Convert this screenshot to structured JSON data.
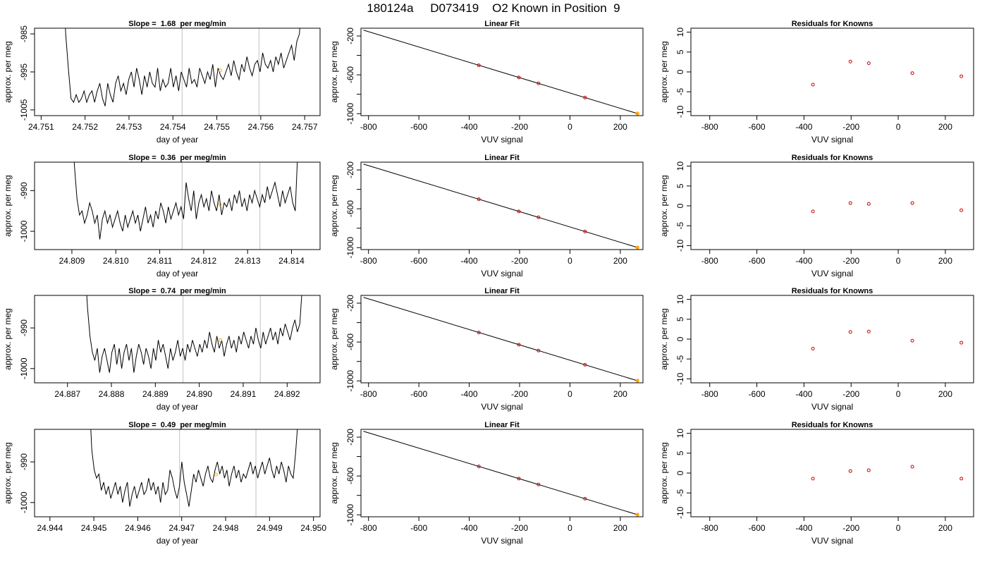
{
  "figure_title": "180124a     D073419    O2 Known in Position  9",
  "colors": {
    "trace": "#000000",
    "vline": "#cccccc",
    "point_red": "#cc0000",
    "point_orange": "#ffa500"
  },
  "chart_data": [
    {
      "type": "line",
      "title": "Slope =  1.68  per meg/min",
      "xlabel": "day of year",
      "ylabel": "approx. per meg",
      "xlim": [
        24.75085,
        24.75735
      ],
      "ylim": [
        -1006.5,
        -983.5
      ],
      "xticks": [
        24.751,
        24.752,
        24.753,
        24.754,
        24.755,
        24.756,
        24.757
      ],
      "xtick_labels": [
        "24.751",
        "24.752",
        "24.753",
        "24.754",
        "24.755",
        "24.756",
        "24.757"
      ],
      "yticks": [
        -1005,
        -995,
        -985
      ],
      "ytick_labels": [
        "-1005",
        "-995",
        "-985"
      ],
      "vlines": [
        24.75421,
        24.75596
      ],
      "trace_x_start": 24.7515,
      "trace_x_end": 24.757,
      "trace": [
        -970,
        -985,
        -994,
        -1002,
        -1003,
        -1001,
        -1003,
        -1002,
        -1000,
        -1003,
        -1001,
        -1000,
        -1003,
        -1000,
        -998,
        -1002,
        -1004,
        -998,
        -1001,
        -1003,
        -998,
        -996,
        -1000,
        -998,
        -1001,
        -997,
        -995,
        -999,
        -994,
        -997,
        -1001,
        -996,
        -999,
        -995,
        -998,
        -999,
        -994,
        -1000,
        -997,
        -999,
        -998,
        -994,
        -999,
        -996,
        -1000,
        -995,
        -997,
        -999,
        -994,
        -998,
        -997,
        -999,
        -994,
        -996,
        -998,
        -995,
        -997,
        -993,
        -999,
        -994,
        -996,
        -997,
        -995,
        -993,
        -996,
        -992,
        -995,
        -997,
        -993,
        -995,
        -991,
        -994,
        -996,
        -993,
        -992,
        -995,
        -990,
        -993,
        -994,
        -992,
        -995,
        -991,
        -993,
        -990,
        -994,
        -992,
        -990,
        -988,
        -992,
        -987,
        -985,
        -975,
        -970
      ],
      "trace_y_min": -1006.5,
      "marker": {
        "x": 24.75508,
        "y": -994.6
      }
    },
    {
      "type": "scatter",
      "title": "Linear Fit",
      "xlabel": "VUV signal",
      "ylabel": "approx. per meg",
      "xlim": [
        -830,
        290
      ],
      "ylim": [
        -1020,
        -120
      ],
      "xticks": [
        -800,
        -600,
        -400,
        -200,
        0,
        200
      ],
      "xtick_labels": [
        "-800",
        "-600",
        "-400",
        "-200",
        "0",
        "200"
      ],
      "yticks": [
        -1000,
        -800,
        -600,
        -400,
        -200
      ],
      "ytick_labels": [
        "-1000",
        "",
        "-600",
        "",
        "-200"
      ],
      "line": [
        [
          -820,
          -140
        ],
        [
          270,
          -1000
        ]
      ],
      "points": [
        [
          -362,
          -502
        ],
        [
          -203,
          -627
        ],
        [
          -125,
          -688
        ],
        [
          60,
          -834
        ],
        [
          268,
          -998
        ]
      ],
      "highlight": [
        268,
        -998
      ]
    },
    {
      "type": "scatter",
      "title": "Residuals for Knowns",
      "xlabel": "VUV signal",
      "ylabel": "approx. per meg",
      "xlim": [
        -880,
        320
      ],
      "ylim": [
        -11,
        11
      ],
      "xticks": [
        -800,
        -600,
        -400,
        -200,
        0,
        200
      ],
      "xtick_labels": [
        "-800",
        "-600",
        "-400",
        "-200",
        "0",
        "200"
      ],
      "yticks": [
        -10,
        -5,
        0,
        5,
        10
      ],
      "ytick_labels": [
        "-10",
        "-5",
        "0",
        "5",
        "10"
      ],
      "points": [
        [
          -362,
          -3.2
        ],
        [
          -203,
          2.6
        ],
        [
          -125,
          2.2
        ],
        [
          60,
          -0.3
        ],
        [
          268,
          -1.1
        ]
      ]
    },
    {
      "type": "line",
      "title": "Slope =  0.36  per meg/min",
      "xlabel": "day of year",
      "ylabel": "approx. per meg",
      "xlim": [
        24.80815,
        24.81465
      ],
      "ylim": [
        -1004.5,
        -983
      ],
      "xticks": [
        24.809,
        24.81,
        24.811,
        24.812,
        24.813,
        24.814
      ],
      "xtick_labels": [
        "24.809",
        "24.810",
        "24.811",
        "24.812",
        "24.813",
        "24.814"
      ],
      "yticks": [
        -1000,
        -990
      ],
      "ytick_labels": [
        "-1000",
        "-990"
      ],
      "vlines": [
        24.81151,
        24.81328
      ],
      "trace_x_start": 24.809,
      "trace_x_end": 24.8142,
      "trace": [
        -972,
        -984,
        -992,
        -996,
        -995,
        -998,
        -996,
        -993,
        -995,
        -998,
        -996,
        -1002,
        -997,
        -995,
        -998,
        -996,
        -999,
        -997,
        -995,
        -998,
        -1000,
        -996,
        -999,
        -997,
        -995,
        -998,
        -996,
        -1000,
        -997,
        -994,
        -998,
        -996,
        -999,
        -995,
        -997,
        -993,
        -995,
        -998,
        -994,
        -997,
        -995,
        -993,
        -996,
        -994,
        -997,
        -988,
        -992,
        -995,
        -990,
        -997,
        -993,
        -991,
        -994,
        -992,
        -995,
        -990,
        -993,
        -995,
        -991,
        -996,
        -993,
        -994,
        -992,
        -995,
        -991,
        -993,
        -990,
        -994,
        -992,
        -995,
        -991,
        -993,
        -990,
        -992,
        -994,
        -991,
        -993,
        -989,
        -992,
        -990,
        -988,
        -991,
        -994,
        -990,
        -993,
        -991,
        -989,
        -993,
        -995,
        -980,
        -972
      ],
      "trace_y_min": -1004.5,
      "marker": {
        "x": 24.81237,
        "y": -993.4
      }
    },
    {
      "type": "scatter",
      "title": "Linear Fit",
      "xlabel": "VUV signal",
      "ylabel": "approx. per meg",
      "xlim": [
        -830,
        290
      ],
      "ylim": [
        -1020,
        -120
      ],
      "xticks": [
        -800,
        -600,
        -400,
        -200,
        0,
        200
      ],
      "xtick_labels": [
        "-800",
        "-600",
        "-400",
        "-200",
        "0",
        "200"
      ],
      "yticks": [
        -1000,
        -800,
        -600,
        -400,
        -200
      ],
      "ytick_labels": [
        "-1000",
        "",
        "-600",
        "",
        "-200"
      ],
      "line": [
        [
          -820,
          -140
        ],
        [
          270,
          -1000
        ]
      ],
      "points": [
        [
          -362,
          -502
        ],
        [
          -203,
          -627
        ],
        [
          -125,
          -688
        ],
        [
          60,
          -834
        ],
        [
          268,
          -998
        ]
      ],
      "highlight": [
        268,
        -998
      ]
    },
    {
      "type": "scatter",
      "title": "Residuals for Knowns",
      "xlabel": "VUV signal",
      "ylabel": "approx. per meg",
      "xlim": [
        -880,
        320
      ],
      "ylim": [
        -11,
        11
      ],
      "xticks": [
        -800,
        -600,
        -400,
        -200,
        0,
        200
      ],
      "xtick_labels": [
        "-800",
        "-600",
        "-400",
        "-200",
        "0",
        "200"
      ],
      "yticks": [
        -10,
        -5,
        0,
        5,
        10
      ],
      "ytick_labels": [
        "-10",
        "-5",
        "0",
        "5",
        "10"
      ],
      "points": [
        [
          -362,
          -1.4
        ],
        [
          -203,
          0.7
        ],
        [
          -125,
          0.5
        ],
        [
          60,
          0.7
        ],
        [
          268,
          -1.1
        ]
      ]
    },
    {
      "type": "line",
      "title": "Slope =  0.74  per meg/min",
      "xlabel": "day of year",
      "ylabel": "approx. per meg",
      "xlim": [
        24.88625,
        24.89275
      ],
      "ylim": [
        -1003.5,
        -982
      ],
      "xticks": [
        24.887,
        24.888,
        24.889,
        24.89,
        24.891,
        24.892
      ],
      "xtick_labels": [
        "24.887",
        "24.888",
        "24.889",
        "24.890",
        "24.891",
        "24.892"
      ],
      "yticks": [
        -1000,
        -990
      ],
      "ytick_labels": [
        "-1000",
        "-990"
      ],
      "vlines": [
        24.88963,
        24.89139
      ],
      "trace_x_start": 24.8874,
      "trace_x_end": 24.8924,
      "trace": [
        -975,
        -985,
        -992,
        -996,
        -998,
        -995,
        -1001,
        -997,
        -995,
        -998,
        -1001,
        -996,
        -994,
        -999,
        -995,
        -1000,
        -996,
        -994,
        -998,
        -995,
        -1001,
        -997,
        -994,
        -996,
        -999,
        -995,
        -997,
        -1000,
        -995,
        -998,
        -993,
        -996,
        -994,
        -997,
        -1000,
        -995,
        -998,
        -996,
        -993,
        -997,
        -995,
        -998,
        -994,
        -996,
        -993,
        -995,
        -997,
        -994,
        -996,
        -993,
        -995,
        -991,
        -994,
        -996,
        -992,
        -995,
        -993,
        -997,
        -994,
        -992,
        -995,
        -993,
        -996,
        -992,
        -994,
        -991,
        -993,
        -995,
        -992,
        -994,
        -990,
        -993,
        -995,
        -991,
        -994,
        -992,
        -990,
        -993,
        -991,
        -994,
        -990,
        -992,
        -989,
        -991,
        -993,
        -990,
        -988,
        -991,
        -989,
        -980,
        -972
      ],
      "trace_y_min": -1003.5,
      "marker": {
        "x": 24.89048,
        "y": -993.0
      }
    },
    {
      "type": "scatter",
      "title": "Linear Fit",
      "xlabel": "VUV signal",
      "ylabel": "approx. per meg",
      "xlim": [
        -830,
        290
      ],
      "ylim": [
        -1020,
        -120
      ],
      "xticks": [
        -800,
        -600,
        -400,
        -200,
        0,
        200
      ],
      "xtick_labels": [
        "-800",
        "-600",
        "-400",
        "-200",
        "0",
        "200"
      ],
      "yticks": [
        -1000,
        -800,
        -600,
        -400,
        -200
      ],
      "ytick_labels": [
        "-1000",
        "",
        "-600",
        "",
        "-200"
      ],
      "line": [
        [
          -820,
          -140
        ],
        [
          270,
          -1000
        ]
      ],
      "points": [
        [
          -362,
          -502
        ],
        [
          -203,
          -627
        ],
        [
          -125,
          -688
        ],
        [
          60,
          -834
        ],
        [
          268,
          -998
        ]
      ],
      "highlight": [
        268,
        -998
      ]
    },
    {
      "type": "scatter",
      "title": "Residuals for Knowns",
      "xlabel": "VUV signal",
      "ylabel": "approx. per meg",
      "xlim": [
        -880,
        320
      ],
      "ylim": [
        -11,
        11
      ],
      "xticks": [
        -800,
        -600,
        -400,
        -200,
        0,
        200
      ],
      "xtick_labels": [
        "-800",
        "-600",
        "-400",
        "-200",
        "0",
        "200"
      ],
      "yticks": [
        -10,
        -5,
        0,
        5,
        10
      ],
      "ytick_labels": [
        "-10",
        "-5",
        "0",
        "5",
        "10"
      ],
      "points": [
        [
          -362,
          -2.4
        ],
        [
          -203,
          1.8
        ],
        [
          -125,
          1.9
        ],
        [
          60,
          -0.4
        ],
        [
          268,
          -0.9
        ]
      ]
    },
    {
      "type": "line",
      "title": "Slope =  0.49  per meg/min",
      "xlabel": "day of year",
      "ylabel": "approx. per meg",
      "xlim": [
        24.94365,
        24.95015
      ],
      "ylim": [
        -1003.5,
        -982
      ],
      "xticks": [
        24.944,
        24.945,
        24.946,
        24.947,
        24.948,
        24.949,
        24.95
      ],
      "xtick_labels": [
        "24.944",
        "24.945",
        "24.946",
        "24.947",
        "24.948",
        "24.949",
        "24.950"
      ],
      "yticks": [
        -1000,
        -990
      ],
      "ytick_labels": [
        "-1000",
        "-990"
      ],
      "vlines": [
        24.94695,
        24.94869
      ],
      "trace_x_start": 24.9449,
      "trace_x_end": 24.9497,
      "trace": [
        -975,
        -987,
        -992,
        -994,
        -993,
        -997,
        -995,
        -998,
        -996,
        -999,
        -997,
        -995,
        -998,
        -996,
        -1000,
        -997,
        -995,
        -1001,
        -998,
        -996,
        -999,
        -997,
        -995,
        -998,
        -997,
        -994,
        -997,
        -995,
        -998,
        -996,
        -1000,
        -995,
        -998,
        -997,
        -992,
        -994,
        -997,
        -999,
        -996,
        -990,
        -995,
        -998,
        -1001,
        -997,
        -993,
        -995,
        -992,
        -994,
        -996,
        -993,
        -991,
        -994,
        -995,
        -992,
        -990,
        -993,
        -991,
        -994,
        -992,
        -996,
        -993,
        -991,
        -994,
        -992,
        -995,
        -993,
        -994,
        -992,
        -990,
        -993,
        -991,
        -994,
        -992,
        -990,
        -993,
        -991,
        -989,
        -992,
        -994,
        -991,
        -993,
        -990,
        -992,
        -995,
        -991,
        -993,
        -994,
        -988,
        -980,
        -972
      ],
      "trace_y_min": -1003.5,
      "marker": {
        "x": 24.94778,
        "y": -993.1
      }
    },
    {
      "type": "scatter",
      "title": "Linear Fit",
      "xlabel": "VUV signal",
      "ylabel": "approx. per meg",
      "xlim": [
        -830,
        290
      ],
      "ylim": [
        -1020,
        -120
      ],
      "xticks": [
        -800,
        -600,
        -400,
        -200,
        0,
        200
      ],
      "xtick_labels": [
        "-800",
        "-600",
        "-400",
        "-200",
        "0",
        "200"
      ],
      "yticks": [
        -1000,
        -800,
        -600,
        -400,
        -200
      ],
      "ytick_labels": [
        "-1000",
        "",
        "-600",
        "",
        "-200"
      ],
      "line": [
        [
          -820,
          -140
        ],
        [
          270,
          -1000
        ]
      ],
      "points": [
        [
          -362,
          -502
        ],
        [
          -203,
          -627
        ],
        [
          -125,
          -688
        ],
        [
          60,
          -834
        ],
        [
          268,
          -998
        ]
      ],
      "highlight": [
        268,
        -998
      ]
    },
    {
      "type": "scatter",
      "title": "Residuals for Knowns",
      "xlabel": "VUV signal",
      "ylabel": "approx. per meg",
      "xlim": [
        -880,
        320
      ],
      "ylim": [
        -11,
        11
      ],
      "xticks": [
        -800,
        -600,
        -400,
        -200,
        0,
        200
      ],
      "xtick_labels": [
        "-800",
        "-600",
        "-400",
        "-200",
        "0",
        "200"
      ],
      "yticks": [
        -10,
        -5,
        0,
        5,
        10
      ],
      "ytick_labels": [
        "-10",
        "-5",
        "0",
        "5",
        "10"
      ],
      "points": [
        [
          -362,
          -1.4
        ],
        [
          -203,
          0.5
        ],
        [
          -125,
          0.7
        ],
        [
          60,
          1.6
        ],
        [
          268,
          -1.4
        ]
      ]
    }
  ]
}
